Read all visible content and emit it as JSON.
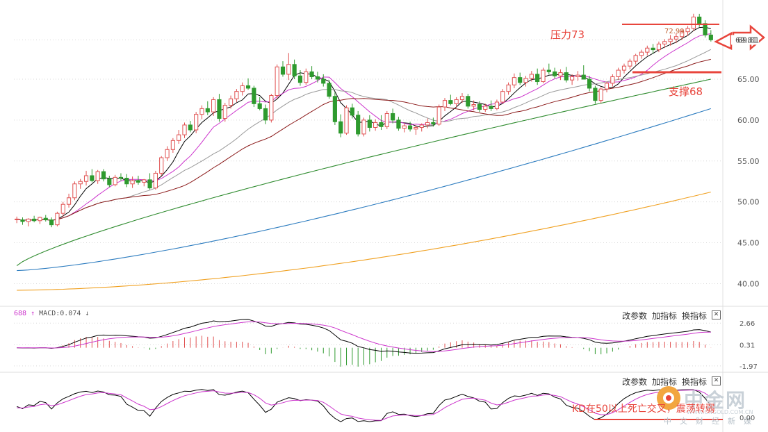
{
  "chart_data": [
    {
      "type": "candlestick",
      "panel": "price",
      "yticks": [
        40.0,
        45.0,
        50.0,
        55.0,
        60.0,
        65.0,
        69.81
      ],
      "ylim": [
        38,
        74
      ],
      "last_price_label": "69.81",
      "high_label": "72.99",
      "annotations": [
        {
          "text": "压力73",
          "value": 73
        },
        {
          "text": "支撑68",
          "value": 68
        }
      ],
      "candles": [
        [
          47.9,
          48.2,
          47.4,
          47.9
        ],
        [
          47.8,
          48.1,
          47.2,
          47.6
        ],
        [
          47.6,
          48.0,
          47.0,
          47.9
        ],
        [
          47.9,
          48.3,
          47.5,
          47.7
        ],
        [
          47.7,
          48.2,
          47.3,
          48.1
        ],
        [
          48.0,
          48.4,
          47.6,
          47.8
        ],
        [
          47.8,
          48.1,
          46.9,
          47.2
        ],
        [
          47.2,
          48.8,
          47.0,
          48.6
        ],
        [
          48.6,
          50.0,
          48.2,
          49.7
        ],
        [
          49.7,
          51.0,
          49.3,
          50.5
        ],
        [
          50.5,
          52.5,
          50.2,
          52.2
        ],
        [
          52.2,
          52.8,
          51.6,
          52.5
        ],
        [
          52.5,
          53.8,
          52.0,
          53.2
        ],
        [
          53.2,
          54.0,
          52.4,
          52.6
        ],
        [
          52.6,
          53.9,
          52.2,
          53.7
        ],
        [
          53.7,
          54.0,
          52.5,
          52.8
        ],
        [
          52.8,
          53.2,
          51.8,
          52.1
        ],
        [
          52.1,
          53.3,
          51.9,
          53.0
        ],
        [
          53.0,
          53.5,
          52.6,
          52.9
        ],
        [
          52.9,
          53.4,
          51.8,
          52.2
        ],
        [
          52.2,
          53.1,
          51.7,
          52.6
        ],
        [
          52.6,
          53.2,
          52.1,
          52.4
        ],
        [
          52.4,
          52.8,
          51.9,
          52.7
        ],
        [
          52.7,
          53.5,
          51.5,
          51.7
        ],
        [
          51.7,
          53.8,
          51.5,
          53.5
        ],
        [
          53.5,
          55.6,
          53.2,
          55.4
        ],
        [
          55.4,
          56.8,
          55.0,
          56.4
        ],
        [
          56.4,
          57.8,
          56.0,
          57.5
        ],
        [
          57.5,
          58.8,
          57.1,
          58.2
        ],
        [
          58.2,
          59.7,
          57.8,
          59.4
        ],
        [
          59.4,
          59.9,
          58.5,
          58.8
        ],
        [
          58.8,
          61.0,
          58.4,
          60.7
        ],
        [
          60.7,
          61.8,
          60.1,
          61.4
        ],
        [
          61.4,
          62.3,
          60.6,
          61.0
        ],
        [
          61.0,
          62.8,
          60.5,
          62.5
        ],
        [
          62.5,
          63.2,
          59.8,
          60.2
        ],
        [
          60.2,
          62.1,
          59.8,
          61.8
        ],
        [
          61.8,
          63.0,
          61.4,
          62.6
        ],
        [
          62.6,
          63.8,
          62.2,
          63.5
        ],
        [
          63.5,
          64.6,
          63.0,
          64.2
        ],
        [
          64.2,
          65.1,
          63.7,
          63.9
        ],
        [
          63.9,
          64.2,
          61.6,
          62.0
        ],
        [
          62.0,
          62.8,
          61.2,
          61.4
        ],
        [
          61.4,
          61.9,
          59.5,
          60.0
        ],
        [
          60.0,
          63.2,
          59.7,
          63.0
        ],
        [
          63.0,
          66.8,
          62.6,
          66.5
        ],
        [
          66.5,
          67.2,
          65.3,
          65.6
        ],
        [
          65.6,
          68.2,
          64.9,
          66.8
        ],
        [
          66.8,
          67.4,
          65.0,
          65.4
        ],
        [
          65.4,
          66.1,
          64.2,
          64.6
        ],
        [
          64.6,
          66.3,
          64.3,
          65.9
        ],
        [
          65.9,
          66.6,
          65.0,
          65.3
        ],
        [
          65.3,
          65.9,
          64.6,
          65.0
        ],
        [
          65.0,
          65.6,
          64.1,
          64.5
        ],
        [
          64.5,
          64.9,
          62.6,
          62.9
        ],
        [
          62.9,
          63.4,
          59.4,
          59.8
        ],
        [
          59.8,
          60.7,
          57.9,
          58.4
        ],
        [
          58.4,
          61.8,
          58.2,
          61.5
        ],
        [
          61.5,
          62.0,
          60.2,
          60.6
        ],
        [
          60.6,
          61.1,
          58.0,
          58.3
        ],
        [
          58.3,
          60.3,
          58.0,
          60.0
        ],
        [
          60.0,
          60.6,
          58.6,
          59.1
        ],
        [
          59.1,
          60.1,
          58.7,
          59.7
        ],
        [
          59.7,
          60.6,
          58.8,
          59.2
        ],
        [
          59.2,
          61.1,
          58.9,
          60.8
        ],
        [
          60.8,
          61.4,
          59.6,
          60.0
        ],
        [
          60.0,
          60.4,
          58.7,
          59.0
        ],
        [
          59.0,
          59.6,
          58.5,
          59.3
        ],
        [
          59.3,
          59.8,
          58.6,
          58.9
        ],
        [
          58.9,
          59.4,
          58.2,
          59.1
        ],
        [
          59.1,
          59.6,
          58.6,
          59.4
        ],
        [
          59.4,
          60.2,
          59.0,
          59.7
        ],
        [
          59.7,
          60.3,
          59.2,
          59.5
        ],
        [
          59.5,
          61.9,
          59.3,
          61.6
        ],
        [
          61.6,
          62.7,
          61.1,
          62.4
        ],
        [
          62.4,
          63.1,
          61.8,
          62.0
        ],
        [
          62.0,
          62.8,
          61.6,
          62.5
        ],
        [
          62.5,
          63.3,
          62.1,
          62.9
        ],
        [
          62.9,
          63.2,
          61.4,
          61.7
        ],
        [
          61.7,
          62.4,
          61.2,
          61.9
        ],
        [
          61.9,
          62.3,
          61.0,
          61.3
        ],
        [
          61.3,
          62.0,
          61.0,
          61.7
        ],
        [
          61.7,
          62.4,
          61.1,
          61.4
        ],
        [
          61.4,
          62.5,
          61.2,
          62.2
        ],
        [
          62.2,
          63.8,
          62.0,
          63.5
        ],
        [
          63.5,
          64.6,
          63.1,
          64.3
        ],
        [
          64.3,
          65.7,
          63.9,
          65.2
        ],
        [
          65.2,
          65.8,
          64.3,
          64.6
        ],
        [
          64.6,
          65.4,
          64.1,
          65.1
        ],
        [
          65.1,
          66.0,
          64.7,
          65.6
        ],
        [
          65.6,
          66.3,
          64.3,
          64.7
        ],
        [
          64.7,
          66.4,
          64.5,
          66.1
        ],
        [
          66.1,
          66.9,
          65.6,
          65.9
        ],
        [
          65.9,
          66.4,
          65.1,
          65.4
        ],
        [
          65.4,
          66.2,
          64.9,
          65.8
        ],
        [
          65.8,
          66.5,
          64.6,
          64.9
        ],
        [
          64.9,
          65.6,
          64.3,
          65.3
        ],
        [
          65.3,
          66.0,
          64.8,
          65.5
        ],
        [
          65.5,
          66.7,
          65.1,
          65.0
        ],
        [
          65.0,
          65.4,
          63.5,
          63.9
        ],
        [
          63.9,
          64.2,
          62.0,
          62.4
        ],
        [
          62.4,
          64.0,
          62.1,
          63.8
        ],
        [
          63.8,
          64.7,
          63.4,
          64.5
        ],
        [
          64.5,
          65.6,
          64.1,
          65.3
        ],
        [
          65.3,
          66.4,
          64.9,
          66.1
        ],
        [
          66.1,
          66.9,
          65.7,
          66.6
        ],
        [
          66.6,
          67.5,
          66.2,
          67.2
        ],
        [
          67.2,
          68.1,
          66.8,
          67.9
        ],
        [
          67.9,
          68.6,
          67.5,
          68.3
        ],
        [
          68.3,
          69.1,
          67.9,
          68.8
        ],
        [
          68.8,
          69.3,
          68.1,
          68.6
        ],
        [
          68.6,
          69.6,
          68.3,
          69.3
        ],
        [
          69.3,
          69.9,
          68.8,
          69.6
        ],
        [
          69.6,
          70.4,
          69.1,
          69.9
        ],
        [
          69.9,
          70.6,
          69.4,
          70.2
        ],
        [
          70.2,
          71.1,
          69.8,
          70.8
        ],
        [
          70.8,
          71.5,
          70.3,
          71.2
        ],
        [
          71.2,
          73.0,
          70.9,
          72.6
        ],
        [
          72.6,
          72.99,
          71.4,
          71.8
        ],
        [
          71.8,
          72.2,
          70.1,
          70.4
        ],
        [
          70.4,
          71.0,
          69.6,
          69.81
        ]
      ],
      "moving_averages": [
        {
          "period": 5,
          "color": "#000000"
        },
        {
          "period": 10,
          "color": "#cc33cc"
        },
        {
          "period": 20,
          "color": "#999999"
        },
        {
          "period": 30,
          "color": "#8b1a1a"
        },
        {
          "period": 60,
          "color": "#2e8b2e"
        },
        {
          "period": 120,
          "color": "#2b7bbf"
        },
        {
          "period": 250,
          "color": "#f0a020"
        }
      ],
      "ma_end_values": {
        "ma60": 65.0,
        "ma120": 61.4,
        "ma250": 51.2
      },
      "ma_start_values": {
        "ma60": 42.2,
        "ma120": 41.6,
        "ma250": 39.2
      }
    },
    {
      "type": "macd",
      "panel": "macd",
      "header": {
        "code": "688",
        "arrow_up": "↑",
        "label": "MACD:0.074",
        "arrow_down": "↓"
      },
      "yticks": [
        2.66,
        0.31,
        -1.97
      ],
      "ylim": [
        -2.2,
        2.9
      ]
    },
    {
      "type": "kd",
      "panel": "kd",
      "last_value_label": "0.00",
      "annotation": "KD在50以上死亡交叉，震荡转弱"
    }
  ],
  "toolbar": {
    "change_params": "改参数",
    "add_indicator": "加指标",
    "switch_indicator": "换指标",
    "close": "✕"
  },
  "watermark": {
    "name": "中金网",
    "sub": "中文财经新媒",
    "url": "WWW.CNGOLD.COM.CN"
  },
  "colors": {
    "up": "#e05050",
    "down": "#2e9a2e",
    "annotation": "#e8453c",
    "grid": "#d8d8d8"
  }
}
